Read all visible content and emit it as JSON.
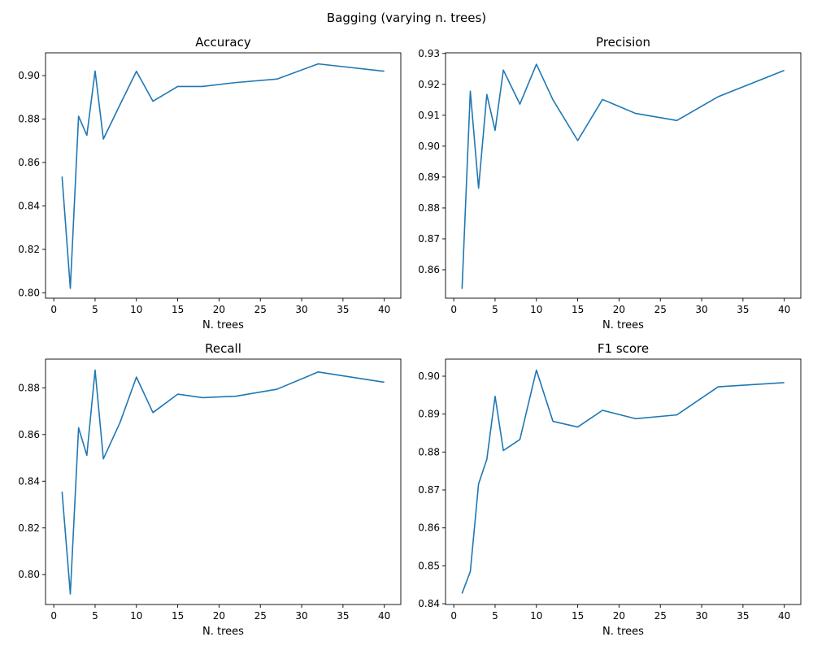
{
  "figure_title": "Bagging (varying n. trees)",
  "line_color": "#1f77b4",
  "chart_data": [
    {
      "type": "line",
      "title": "Accuracy",
      "xlabel": "N. trees",
      "ylabel": "",
      "xlim": [
        -1,
        42
      ],
      "ylim": [
        0.7975,
        0.9105
      ],
      "xticks": [
        0,
        5,
        10,
        15,
        20,
        25,
        30,
        35,
        40
      ],
      "xtick_labels": [
        "0",
        "5",
        "10",
        "15",
        "20",
        "25",
        "30",
        "35",
        "40"
      ],
      "yticks": [
        0.8,
        0.82,
        0.84,
        0.86,
        0.88,
        0.9
      ],
      "ytick_labels": [
        "0.80",
        "0.82",
        "0.84",
        "0.86",
        "0.88",
        "0.90"
      ],
      "grid": false,
      "x": [
        1,
        2,
        3,
        4,
        5,
        6,
        8,
        10,
        12,
        15,
        18,
        22,
        27,
        32,
        40
      ],
      "y": [
        0.8535,
        0.802,
        0.8813,
        0.8725,
        0.9021,
        0.8708,
        0.8865,
        0.902,
        0.8882,
        0.895,
        0.895,
        0.8968,
        0.8984,
        0.9054,
        0.902
      ]
    },
    {
      "type": "line",
      "title": "Precision",
      "xlabel": "N. trees",
      "ylabel": "",
      "xlim": [
        -1,
        42
      ],
      "ylim": [
        0.8508,
        0.9302
      ],
      "xticks": [
        0,
        5,
        10,
        15,
        20,
        25,
        30,
        35,
        40
      ],
      "xtick_labels": [
        "0",
        "5",
        "10",
        "15",
        "20",
        "25",
        "30",
        "35",
        "40"
      ],
      "yticks": [
        0.86,
        0.87,
        0.88,
        0.89,
        0.9,
        0.91,
        0.92,
        0.93
      ],
      "ytick_labels": [
        "0.86",
        "0.87",
        "0.88",
        "0.89",
        "0.90",
        "0.91",
        "0.92",
        "0.93"
      ],
      "grid": false,
      "x": [
        1,
        2,
        3,
        4,
        5,
        6,
        8,
        10,
        12,
        15,
        18,
        22,
        27,
        32,
        40
      ],
      "y": [
        0.8538,
        0.9178,
        0.8864,
        0.9167,
        0.9051,
        0.9246,
        0.9136,
        0.9265,
        0.915,
        0.9018,
        0.9151,
        0.9106,
        0.9083,
        0.916,
        0.9245
      ]
    },
    {
      "type": "line",
      "title": "Recall",
      "xlabel": "N. trees",
      "ylabel": "",
      "xlim": [
        -1,
        42
      ],
      "ylim": [
        0.7872,
        0.8923
      ],
      "xticks": [
        0,
        5,
        10,
        15,
        20,
        25,
        30,
        35,
        40
      ],
      "xtick_labels": [
        "0",
        "5",
        "10",
        "15",
        "20",
        "25",
        "30",
        "35",
        "40"
      ],
      "yticks": [
        0.8,
        0.82,
        0.84,
        0.86,
        0.88
      ],
      "ytick_labels": [
        "0.80",
        "0.82",
        "0.84",
        "0.86",
        "0.88"
      ],
      "grid": false,
      "x": [
        1,
        2,
        3,
        4,
        5,
        6,
        8,
        10,
        12,
        15,
        18,
        22,
        27,
        32,
        40
      ],
      "y": [
        0.8355,
        0.7917,
        0.8629,
        0.8511,
        0.8876,
        0.8496,
        0.865,
        0.8846,
        0.8694,
        0.8773,
        0.8758,
        0.8764,
        0.8794,
        0.8868,
        0.8824
      ]
    },
    {
      "type": "line",
      "title": "F1 score",
      "xlabel": "N. trees",
      "ylabel": "",
      "xlim": [
        -1,
        42
      ],
      "ylim": [
        0.8398,
        0.9045
      ],
      "xticks": [
        0,
        5,
        10,
        15,
        20,
        25,
        30,
        35,
        40
      ],
      "xtick_labels": [
        "0",
        "5",
        "10",
        "15",
        "20",
        "25",
        "30",
        "35",
        "40"
      ],
      "yticks": [
        0.84,
        0.85,
        0.86,
        0.87,
        0.88,
        0.89,
        0.9
      ],
      "ytick_labels": [
        "0.84",
        "0.85",
        "0.86",
        "0.87",
        "0.88",
        "0.89",
        "0.90"
      ],
      "grid": false,
      "x": [
        1,
        2,
        3,
        4,
        5,
        6,
        8,
        10,
        12,
        15,
        18,
        22,
        27,
        32,
        40
      ],
      "y": [
        0.8427,
        0.8485,
        0.8716,
        0.8781,
        0.8947,
        0.8804,
        0.8833,
        0.9016,
        0.8881,
        0.8866,
        0.891,
        0.8888,
        0.8898,
        0.8972,
        0.8983
      ]
    }
  ]
}
